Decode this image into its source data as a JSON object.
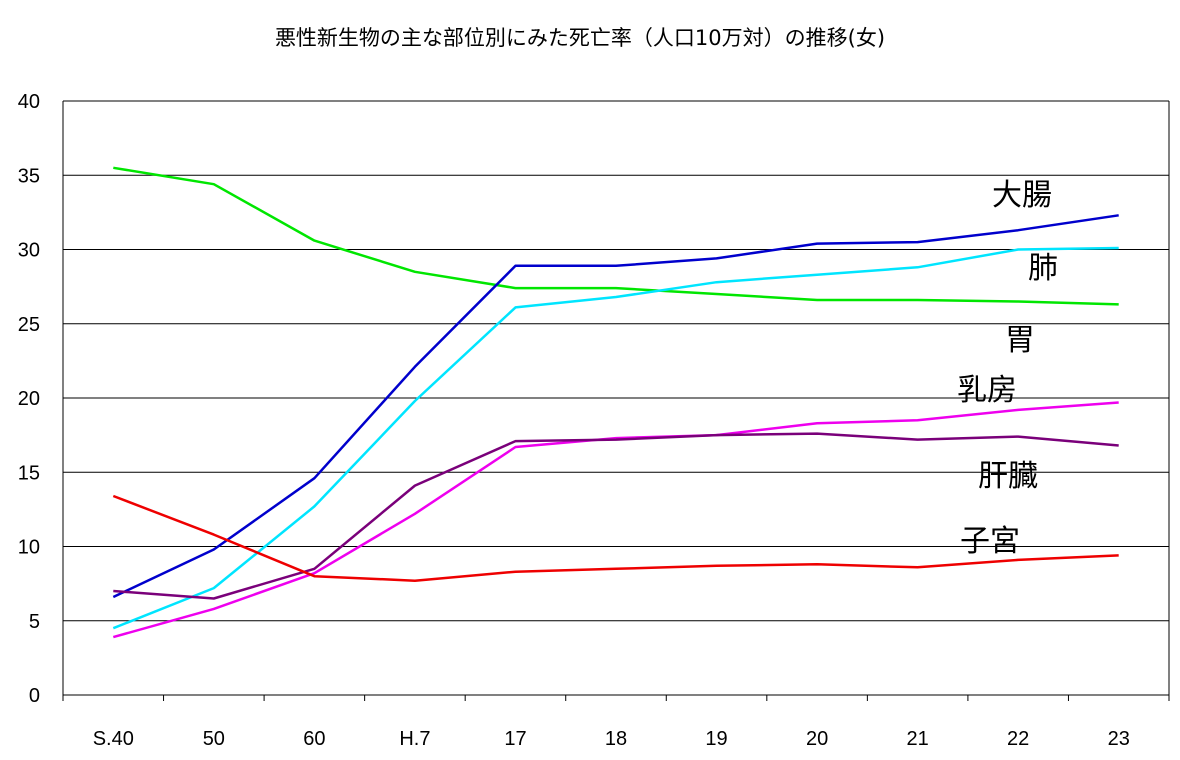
{
  "chart_data": {
    "type": "line",
    "title": "悪性新生物の主な部位別にみた死亡率（人口10万対）の推移(女)",
    "xlabel": "",
    "ylabel": "",
    "categories": [
      "S.40",
      "50",
      "60",
      "H.7",
      "17",
      "18",
      "19",
      "20",
      "21",
      "22",
      "23"
    ],
    "ylim": [
      0,
      40
    ],
    "yticks": [
      0,
      5,
      10,
      15,
      20,
      25,
      30,
      35,
      40
    ],
    "grid": true,
    "series": [
      {
        "name": "胃",
        "color": "#00e600",
        "values": [
          35.5,
          34.4,
          30.6,
          28.5,
          27.4,
          27.4,
          27.0,
          26.6,
          26.6,
          26.5,
          26.3
        ]
      },
      {
        "name": "大腸",
        "color": "#0000cc",
        "values": [
          6.6,
          9.8,
          14.6,
          22.1,
          28.9,
          28.9,
          29.4,
          30.4,
          30.5,
          31.3,
          32.3
        ]
      },
      {
        "name": "肺",
        "color": "#00e5ff",
        "values": [
          4.5,
          7.2,
          12.7,
          19.8,
          26.1,
          26.8,
          27.8,
          28.3,
          28.8,
          30.0,
          30.1
        ]
      },
      {
        "name": "乳房",
        "color": "#ee00ee",
        "values": [
          3.9,
          5.8,
          8.2,
          12.2,
          16.7,
          17.3,
          17.5,
          18.3,
          18.5,
          19.2,
          19.7
        ]
      },
      {
        "name": "肝臓",
        "color": "#7a007a",
        "values": [
          7.0,
          6.5,
          8.5,
          14.1,
          17.1,
          17.2,
          17.5,
          17.6,
          17.2,
          17.4,
          16.8
        ]
      },
      {
        "name": "子宮",
        "color": "#ee0000",
        "values": [
          13.4,
          10.8,
          8.0,
          7.7,
          8.3,
          8.5,
          8.7,
          8.8,
          8.6,
          9.1,
          9.4
        ]
      }
    ],
    "series_label_order": [
      "大腸",
      "肺",
      "胃",
      "乳房",
      "肝臓",
      "子宮"
    ]
  }
}
